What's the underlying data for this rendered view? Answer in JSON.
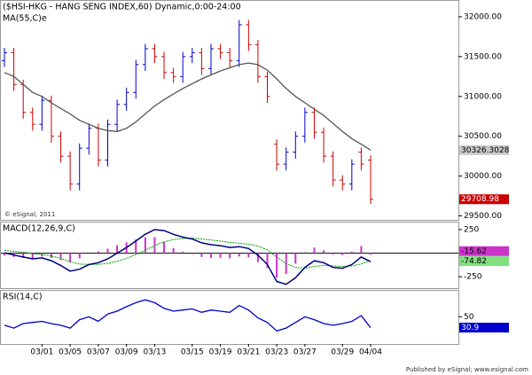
{
  "chart_data": [
    {
      "type": "ohlc",
      "title": "($HSI-HKG - HANG SENG INDEX,60) Dynamic,0:00-24:00",
      "ma_label": "MA(55,C)e",
      "copyright": "© eSignal, 2011",
      "footer": "Published by eSignal; www.esignal.com",
      "categories": [
        null,
        null,
        null,
        null,
        "03/01",
        null,
        null,
        "03/05",
        null,
        null,
        "03/07",
        null,
        null,
        "03/09",
        null,
        null,
        "03/13",
        null,
        null,
        null,
        "03/15",
        null,
        null,
        "03/19",
        null,
        null,
        "03/21",
        null,
        null,
        "03/23",
        null,
        null,
        "03/27",
        null,
        null,
        null,
        "03/29",
        null,
        null,
        "04/04"
      ],
      "open": [
        31450,
        31550,
        31150,
        30800,
        30650,
        30950,
        30500,
        30250,
        29900,
        30350,
        30600,
        30200,
        30650,
        30900,
        31050,
        31400,
        31600,
        31500,
        31300,
        31250,
        31500,
        31550,
        31350,
        31600,
        31550,
        31450,
        31900,
        31650,
        31250,
        30400,
        30150,
        30300,
        30500,
        30800,
        30550,
        30250,
        29950,
        29900,
        30300,
        30200
      ],
      "high": [
        31610,
        31610,
        31210,
        30860,
        31010,
        31010,
        30560,
        30310,
        30410,
        30660,
        30660,
        30710,
        30960,
        31110,
        31460,
        31660,
        31660,
        31560,
        31360,
        31560,
        31610,
        31610,
        31660,
        31660,
        31610,
        31960,
        31960,
        31710,
        31310,
        30460,
        30360,
        30560,
        30860,
        30860,
        30610,
        30310,
        30010,
        30210,
        30360,
        30260
      ],
      "low": [
        31370,
        31070,
        30720,
        30570,
        30570,
        30420,
        30170,
        29820,
        29820,
        30270,
        30120,
        30120,
        30570,
        30820,
        30970,
        31320,
        31420,
        31220,
        31170,
        31170,
        31420,
        31270,
        31270,
        31470,
        31370,
        31370,
        31570,
        31170,
        30920,
        30070,
        30070,
        30220,
        30420,
        30470,
        30170,
        29870,
        29820,
        29820,
        30070,
        29650
      ],
      "close": [
        31550,
        31150,
        30800,
        30650,
        30950,
        30500,
        30250,
        29900,
        30350,
        30600,
        30200,
        30650,
        30900,
        31050,
        31400,
        31600,
        31500,
        31300,
        31250,
        31500,
        31550,
        31350,
        31600,
        31550,
        31450,
        31900,
        31650,
        31250,
        31000,
        30150,
        30300,
        30500,
        30800,
        30550,
        30250,
        29950,
        29900,
        30150,
        30150,
        29708.98
      ],
      "ma": [
        31300,
        31250,
        31150,
        31050,
        31000,
        30920,
        30850,
        30780,
        30700,
        30650,
        30600,
        30570,
        30560,
        30600,
        30680,
        30780,
        30880,
        30960,
        31030,
        31100,
        31160,
        31220,
        31270,
        31320,
        31360,
        31400,
        31420,
        31400,
        31330,
        31220,
        31100,
        31000,
        30920,
        30840,
        30760,
        30660,
        30560,
        30470,
        30400,
        30326.3028
      ],
      "up_color": "#0000cc",
      "down_color": "#cc0000",
      "ma_color": "#555555",
      "ylim": [
        29450,
        32200
      ],
      "yticks": [
        {
          "value": 32000,
          "label": "32000.00"
        },
        {
          "value": 31500,
          "label": "31500.00"
        },
        {
          "value": 31000,
          "label": "31000.00"
        },
        {
          "value": 30500,
          "label": "30500.00"
        },
        {
          "value": 30000,
          "label": "30000.00"
        },
        {
          "value": 29500,
          "label": "29500.00"
        }
      ]
    },
    {
      "type": "macd",
      "title": "MACD(12,26,9,C)",
      "series": [
        {
          "name": "MACD",
          "color": "#000080",
          "values": [
            5,
            -20,
            -40,
            -60,
            -50,
            -80,
            -130,
            -190,
            -170,
            -120,
            -100,
            -60,
            0,
            60,
            130,
            200,
            250,
            240,
            200,
            170,
            150,
            110,
            90,
            80,
            60,
            70,
            50,
            -20,
            -120,
            -300,
            -330,
            -260,
            -150,
            -80,
            -100,
            -150,
            -160,
            -120,
            -40,
            -90.44
          ]
        },
        {
          "name": "Signal",
          "color": "#00a000",
          "values": [
            30,
            20,
            10,
            -5,
            -15,
            -30,
            -55,
            -90,
            -115,
            -120,
            -118,
            -108,
            -85,
            -55,
            -15,
            30,
            80,
            120,
            145,
            155,
            160,
            150,
            140,
            128,
            115,
            105,
            95,
            75,
            35,
            -40,
            -110,
            -150,
            -160,
            -140,
            -130,
            -135,
            -140,
            -135,
            -115,
            -74.82
          ]
        },
        {
          "name": "Histogram",
          "color": "#cc33cc",
          "values": [
            -25,
            -40,
            -50,
            -55,
            -35,
            -50,
            -75,
            -100,
            -55,
            0,
            18,
            48,
            85,
            115,
            145,
            170,
            170,
            120,
            55,
            15,
            -10,
            -40,
            -50,
            -48,
            -55,
            -35,
            -45,
            -95,
            -155,
            -260,
            -220,
            -110,
            10,
            60,
            30,
            -15,
            -20,
            15,
            75,
            -15.62
          ]
        }
      ],
      "ylim": [
        -370,
        325
      ],
      "yticks": [
        250,
        -250
      ]
    },
    {
      "type": "line",
      "title": "RSI(14,C)",
      "values": [
        35,
        30,
        38,
        40,
        42,
        38,
        35,
        30,
        45,
        50,
        42,
        55,
        60,
        68,
        75,
        80,
        75,
        65,
        60,
        62,
        64,
        58,
        62,
        60,
        58,
        70,
        62,
        48,
        40,
        25,
        30,
        40,
        50,
        45,
        38,
        35,
        38,
        42,
        52,
        30.9
      ],
      "color": "#0000cc",
      "ylim": [
        2,
        96
      ],
      "yticks": [
        50
      ]
    }
  ]
}
